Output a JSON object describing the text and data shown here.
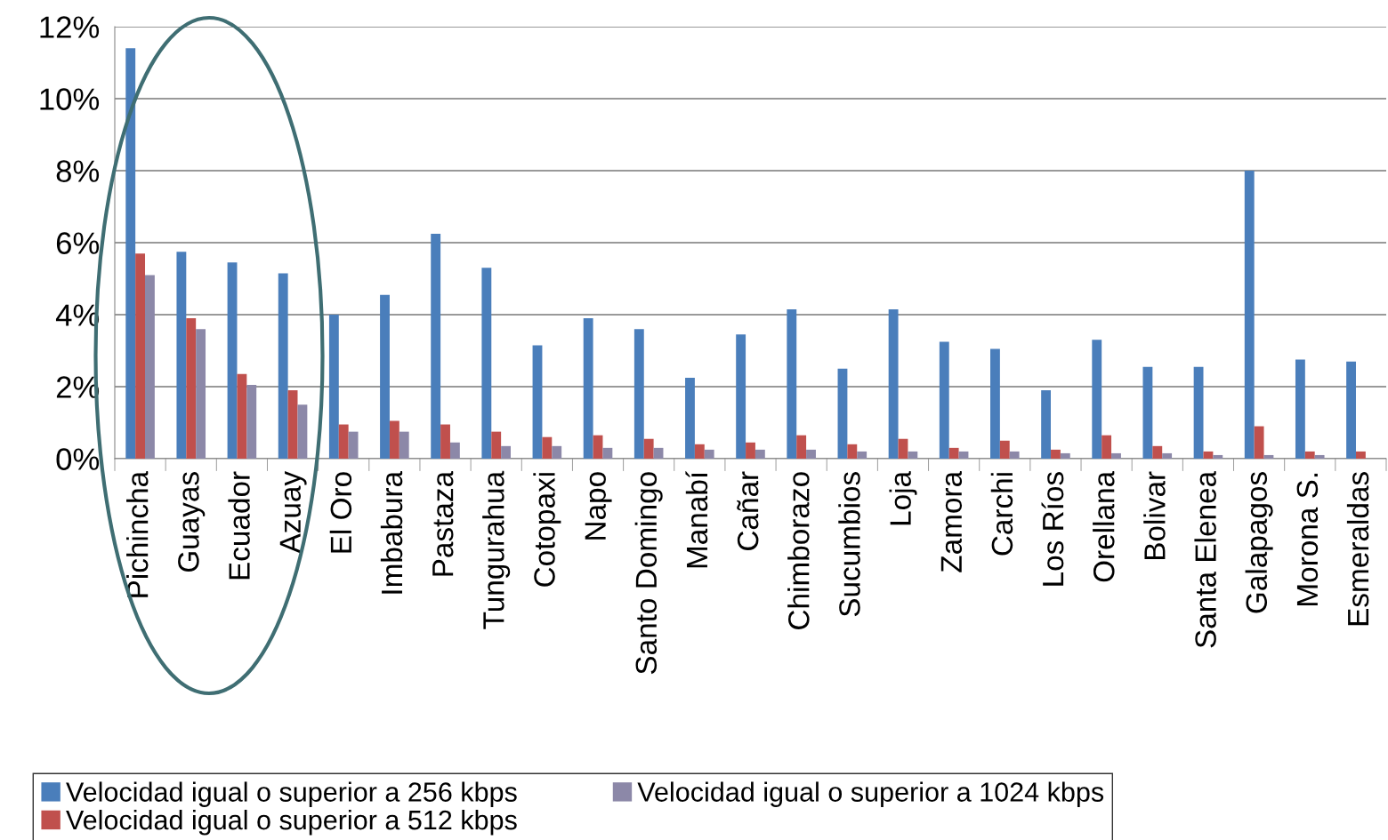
{
  "chart_data": {
    "type": "bar",
    "categories": [
      "Pichincha",
      "Guayas",
      "Ecuador",
      "Azuay",
      "El Oro",
      "Imbabura",
      "Pastaza",
      "Tungurahua",
      "Cotopaxi",
      "Napo",
      "Santo Domingo",
      "Manabí",
      "Cañar",
      "Chimborazo",
      "Sucumbios",
      "Loja",
      "Zamora",
      "Carchi",
      "Los Ríos",
      "Orellana",
      "Bolivar",
      "Santa Elenea",
      "Galapagos",
      "Morona S.",
      "Esmeraldas"
    ],
    "series": [
      {
        "name": "Velocidad igual o superior a 256 kbps",
        "color": "#4a7ebb",
        "values": [
          11.4,
          5.75,
          5.45,
          5.15,
          4.0,
          4.55,
          6.25,
          5.3,
          3.15,
          3.9,
          3.6,
          2.25,
          3.45,
          4.15,
          2.5,
          4.15,
          3.25,
          3.05,
          1.9,
          3.3,
          2.55,
          2.55,
          8.0,
          2.75,
          2.7
        ]
      },
      {
        "name": "Velocidad igual o superior a 512 kbps",
        "color": "#c0504d",
        "values": [
          5.7,
          3.9,
          2.35,
          1.9,
          0.95,
          1.05,
          0.95,
          0.75,
          0.6,
          0.65,
          0.55,
          0.4,
          0.45,
          0.65,
          0.4,
          0.55,
          0.3,
          0.5,
          0.25,
          0.65,
          0.35,
          0.2,
          0.9,
          0.2,
          0.2
        ]
      },
      {
        "name": "Velocidad igual o superior a 1024 kbps",
        "color": "#8c88a8",
        "values": [
          5.1,
          3.6,
          2.05,
          1.5,
          0.75,
          0.75,
          0.45,
          0.35,
          0.35,
          0.3,
          0.3,
          0.25,
          0.25,
          0.25,
          0.2,
          0.2,
          0.2,
          0.2,
          0.15,
          0.15,
          0.15,
          0.1,
          0.1,
          0.1,
          null
        ]
      }
    ],
    "ylim": [
      0,
      12
    ],
    "yticks": [
      {
        "value": 0,
        "label": "0%"
      },
      {
        "value": 2,
        "label": "2%"
      },
      {
        "value": 4,
        "label": "4%"
      },
      {
        "value": 6,
        "label": "6%"
      },
      {
        "value": 8,
        "label": "8%"
      },
      {
        "value": 10,
        "label": "10%"
      },
      {
        "value": 12,
        "label": "12%"
      }
    ],
    "grid": "y",
    "legend": "bottom"
  }
}
